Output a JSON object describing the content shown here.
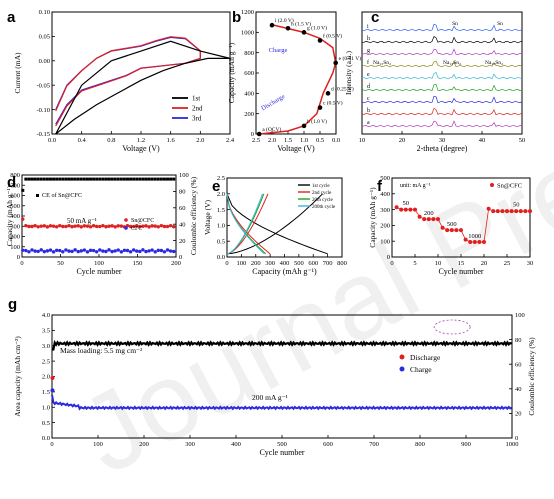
{
  "colors": {
    "first": "#000000",
    "second": "#e02020",
    "third": "#2a2ae0",
    "olive": "#8c8c1f",
    "cyan": "#3ab8d8",
    "green": "#22a022",
    "magenta": "#b040c0",
    "blue2": "#3060ff"
  },
  "watermark": "Journal Pre-proof",
  "panels": {
    "a": {
      "letter": "a",
      "ylabel": "Current (mA)",
      "xlabel": "Voltage (V)",
      "yticks": [
        "0.10",
        "0.05",
        "0.00",
        "-0.05",
        "-0.10",
        "-0.15"
      ],
      "xticks": [
        "0.0",
        "0.4",
        "0.8",
        "1.2",
        "1.6",
        "2.0",
        "2.4"
      ],
      "legend": [
        "1st",
        "2nd",
        "3rd"
      ]
    },
    "b": {
      "letter": "b",
      "ylabel": "Capacity (mAh g⁻¹)",
      "xlabel": "Voltage (V)",
      "yticks": [
        "1200",
        "1000",
        "800",
        "600",
        "400",
        "200",
        "0"
      ],
      "xticks": [
        "2.5",
        "2.0",
        "1.5",
        "1.0",
        "0.5",
        "0.0"
      ],
      "charge": "Charge",
      "discharge": "Discharge",
      "points": [
        "i (2.0 V)",
        "h (1.5 V)",
        "g (1.0 V)",
        "f (0.5 V)",
        "e (0.01 V)",
        "d (0.25 V)",
        "c (0.5 V)",
        "b (1.0 V)",
        "a (OCV)"
      ]
    },
    "c": {
      "letter": "c",
      "ylabel": "Intensity (a.u.)",
      "xlabel": "2-theta (degree)",
      "xticks": [
        "10",
        "20",
        "30",
        "40",
        "50"
      ],
      "traces": [
        "i",
        "h",
        "g",
        "f",
        "e",
        "d",
        "c",
        "b",
        "a"
      ],
      "annotations": [
        "Sn",
        "Sn",
        "Na₁₅Sn₄",
        "Na₁₅Sn₄",
        "Na₁₅Sn₄"
      ]
    },
    "d": {
      "letter": "d",
      "ylabel": "Capacity (mAh g⁻¹)",
      "y2label": "Coulombic efficiency (%)",
      "xlabel": "Cycle number",
      "yticks": [
        "800",
        "700",
        "600",
        "500",
        "400",
        "300",
        "200",
        "100",
        "0"
      ],
      "y2ticks": [
        "100",
        "80",
        "60",
        "40",
        "20",
        "0"
      ],
      "xticks": [
        "0",
        "50",
        "100",
        "150",
        "200"
      ],
      "ce": "CE of Sn@CFC",
      "rate": "50 mA g⁻¹",
      "legend": [
        "Sn@CFC",
        "CFC"
      ]
    },
    "e": {
      "letter": "e",
      "ylabel": "Voltage (V)",
      "xlabel": "Capacity (mAh g⁻¹)",
      "yticks": [
        "2.5",
        "2.0",
        "1.5",
        "1.0",
        "0.5",
        "0.0"
      ],
      "xticks": [
        "0",
        "100",
        "200",
        "300",
        "400",
        "500",
        "600",
        "700",
        "800"
      ],
      "legend": [
        "1st cycle",
        "2nd cycle",
        "20th cycle",
        "200th cycle"
      ]
    },
    "f": {
      "letter": "f",
      "ylabel": "Capacity (mAh g⁻¹)",
      "xlabel": "Cycle number",
      "yticks": [
        "500",
        "400",
        "300",
        "200",
        "100",
        "0"
      ],
      "xticks": [
        "0",
        "5",
        "10",
        "15",
        "20",
        "25",
        "30"
      ],
      "unit": "unit: mA g⁻¹",
      "legend": "Sn@CFC",
      "rates": [
        "50",
        "200",
        "500",
        "1000",
        "50"
      ]
    },
    "g": {
      "letter": "g",
      "ylabel": "Area capacity (mAh cm⁻²)",
      "y2label": "Coulombic efficiency (%)",
      "xlabel": "Cycle number",
      "yticks": [
        "4.0",
        "3.5",
        "3.0",
        "2.5",
        "2.0",
        "1.5",
        "1.0",
        "0.5",
        "0.0"
      ],
      "y2ticks": [
        "100",
        "80",
        "60",
        "40",
        "20",
        "0"
      ],
      "xticks": [
        "0",
        "100",
        "200",
        "300",
        "400",
        "500",
        "600",
        "700",
        "800",
        "900",
        "1000"
      ],
      "loading": "Mass loading: 5.5 mg cm⁻²",
      "rate": "200 mA g⁻¹",
      "legend": [
        "Discharge",
        "Charge"
      ]
    }
  }
}
